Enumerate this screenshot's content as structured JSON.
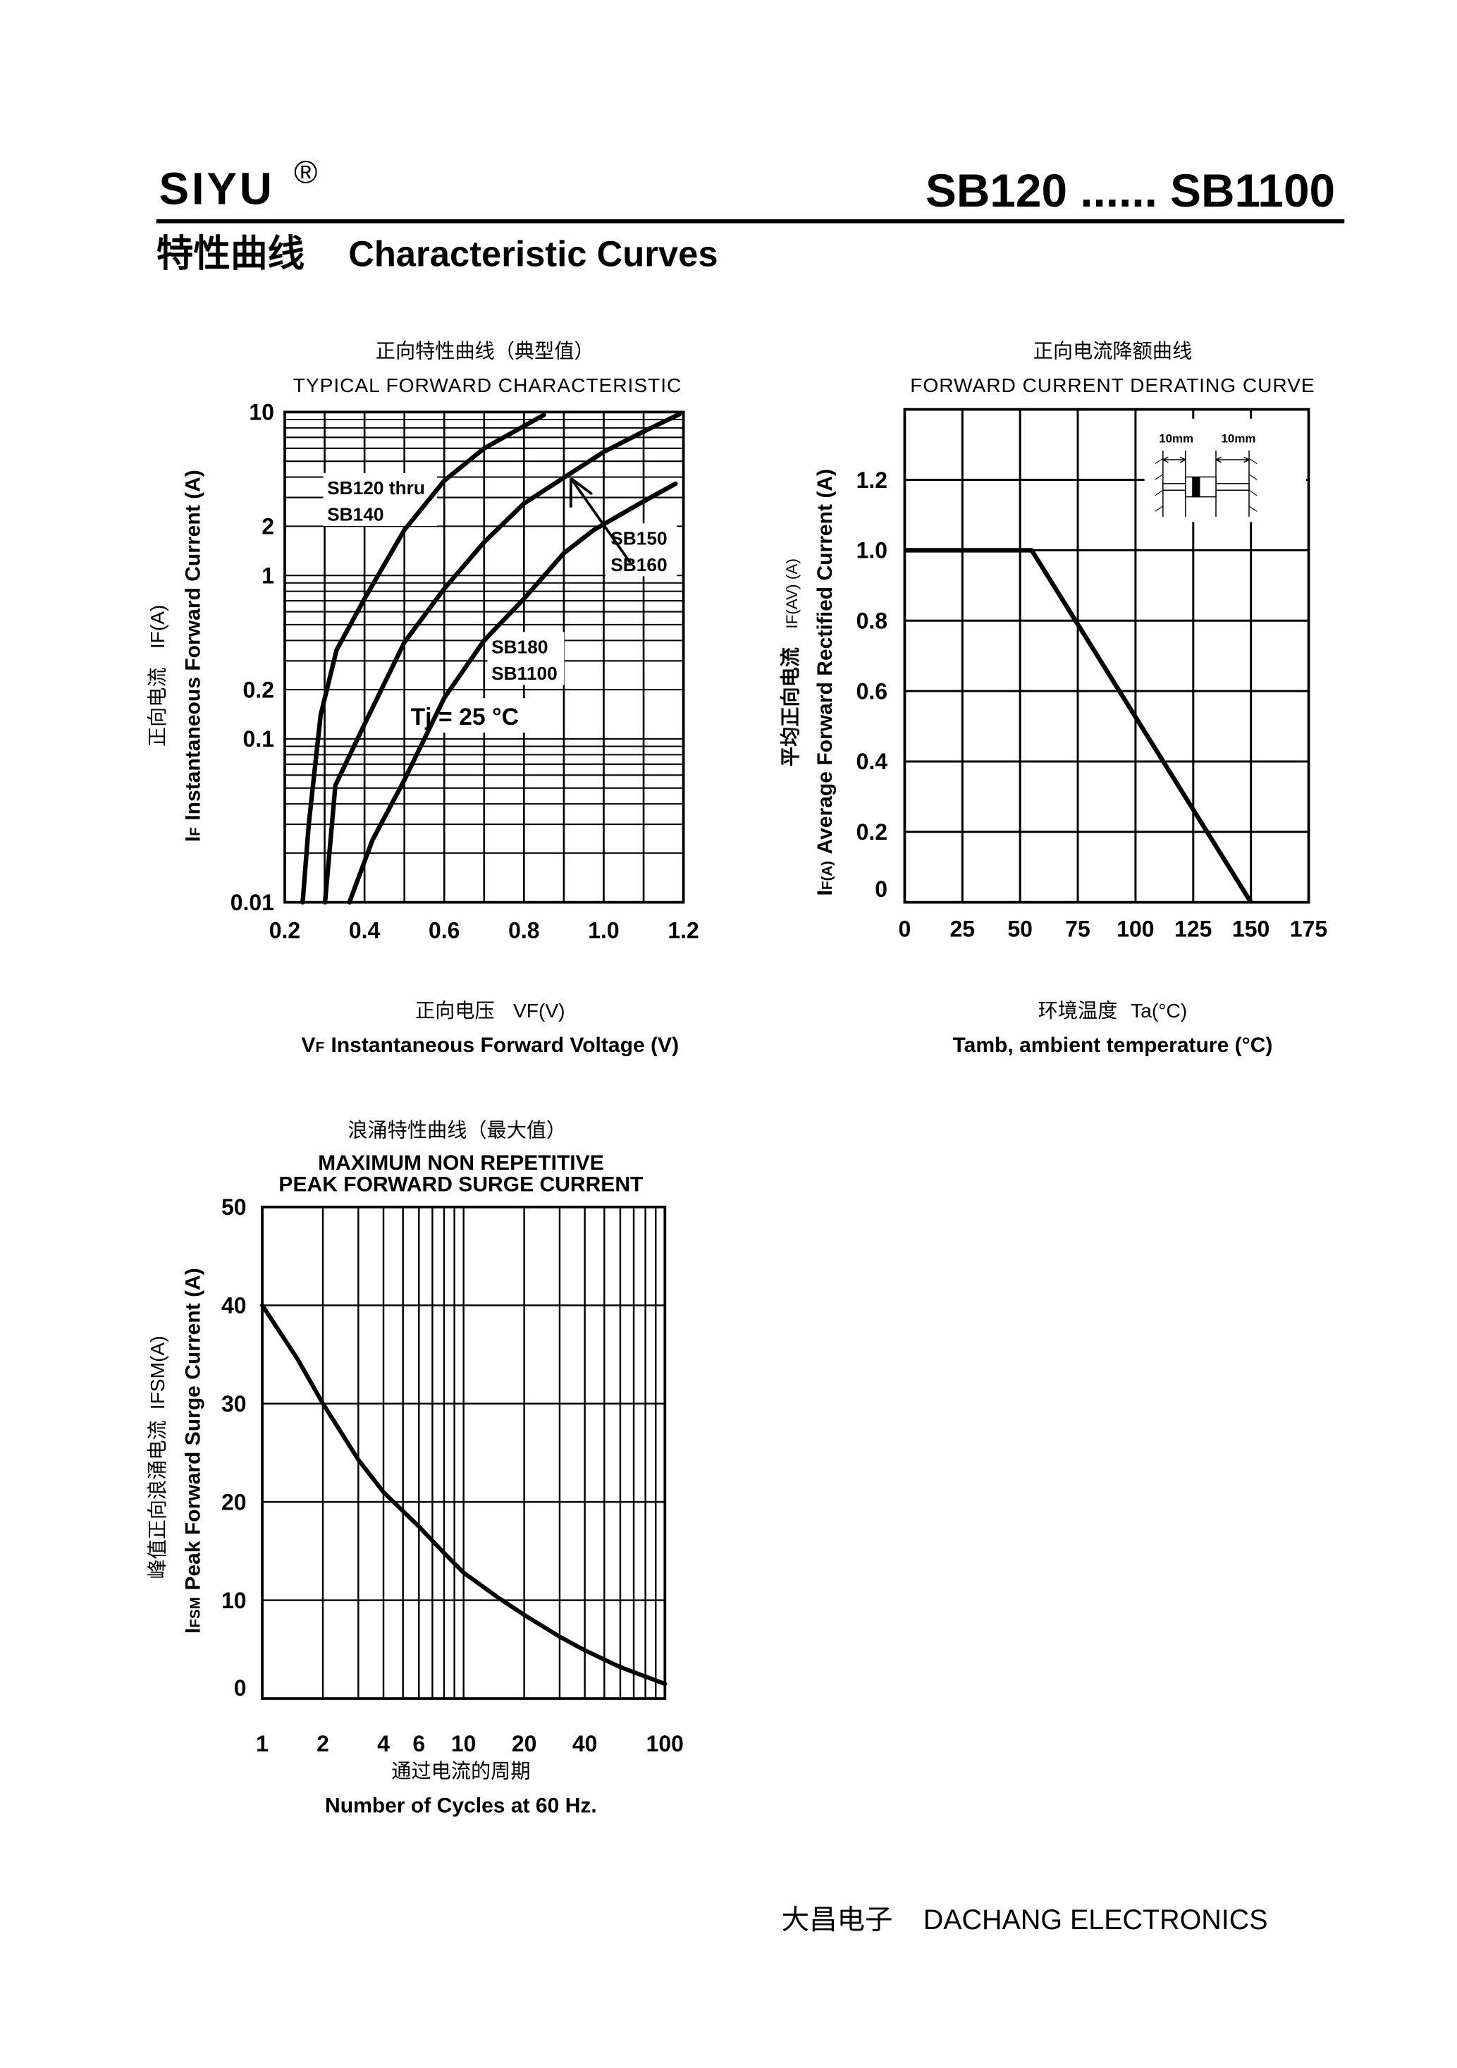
{
  "header": {
    "brand": "SIYU",
    "registered_mark": "®",
    "model_range": "SB120 ...... SB1100",
    "section_title_cn": "特性曲线",
    "section_title_en": "Characteristic Curves"
  },
  "footer": {
    "company_cn": "大昌电子",
    "company_en": "DACHANG ELECTRONICS"
  },
  "chart_data": [
    {
      "type": "line",
      "title_cn": "正向特性曲线（典型值）",
      "title": "TYPICAL FORWARD CHARACTERISTIC",
      "xlabel_cn": "正向电压",
      "xlabel_symbol_cn": "VF(V)",
      "xlabel_sym": "V",
      "xlabel_sub": "F",
      "xlabel": "Instantaneous Forward Voltage (V)",
      "ylabel_cn": "正向电流",
      "ylabel_symbol_cn": "IF(A)",
      "ylabel_sym": "I",
      "ylabel_sub": "F",
      "ylabel": "Instantaneous Forward Current (A)",
      "xlim": [
        0.2,
        1.2
      ],
      "ylim": [
        0.01,
        10
      ],
      "yscale": "log",
      "grid": true,
      "x_ticks": [
        "0.2",
        "0.4",
        "0.6",
        "0.8",
        "1.0",
        "1.2"
      ],
      "y_ticks": [
        {
          "v": 10,
          "label": "10"
        },
        {
          "v": 2,
          "label": "2"
        },
        {
          "v": 1,
          "label": "1"
        },
        {
          "v": 0.2,
          "label": "0.2"
        },
        {
          "v": 0.1,
          "label": "0.1"
        },
        {
          "v": 0.01,
          "label": "0.01"
        }
      ],
      "annotation": "Tj = 25 °C",
      "series": [
        {
          "name_lines": [
            "SB120 thru",
            "SB140"
          ],
          "points": [
            [
              0.245,
              0.01
            ],
            [
              0.26,
              0.03
            ],
            [
              0.29,
              0.14
            ],
            [
              0.33,
              0.35
            ],
            [
              0.4,
              0.72
            ],
            [
              0.5,
              1.9
            ],
            [
              0.6,
              3.8
            ],
            [
              0.7,
              6.0
            ],
            [
              0.85,
              9.6
            ]
          ]
        },
        {
          "name_lines": [
            "SB150",
            "SB160"
          ],
          "points": [
            [
              0.301,
              0.01
            ],
            [
              0.327,
              0.052
            ],
            [
              0.4,
              0.123
            ],
            [
              0.5,
              0.39
            ],
            [
              0.6,
              0.83
            ],
            [
              0.7,
              1.6
            ],
            [
              0.8,
              2.76
            ],
            [
              0.9,
              3.97
            ],
            [
              1.0,
              5.7
            ],
            [
              1.1,
              7.6
            ],
            [
              1.19,
              9.7
            ]
          ]
        },
        {
          "name_lines": [
            "SB180",
            "SB1100"
          ],
          "points": [
            [
              0.362,
              0.01
            ],
            [
              0.42,
              0.024
            ],
            [
              0.5,
              0.056
            ],
            [
              0.6,
              0.178
            ],
            [
              0.7,
              0.4
            ],
            [
              0.8,
              0.72
            ],
            [
              0.9,
              1.37
            ],
            [
              0.975,
              1.9
            ],
            [
              1.1,
              2.84
            ],
            [
              1.18,
              3.64
            ]
          ]
        }
      ]
    },
    {
      "type": "line",
      "title_cn": "正向电流降额曲线",
      "title": "FORWARD CURRENT DERATING CURVE",
      "xlabel_cn": "环境温度",
      "xlabel_symbol_cn": "Ta(°C)",
      "xlabel": "Tamb, ambient temperature (°C)",
      "ylabel_cn": "平均正向电流",
      "ylabel_symbol_cn": "IF(AV) (A)",
      "ylabel_sym": "I",
      "ylabel_sub": "F(A)",
      "ylabel": "Average Forward Rectified Current (A)",
      "xlim": [
        0,
        175
      ],
      "ylim": [
        0,
        1.4
      ],
      "grid": true,
      "x_ticks": [
        "0",
        "25",
        "50",
        "75",
        "100",
        "125",
        "150",
        "175"
      ],
      "y_ticks": [
        "0",
        "0.2",
        "0.4",
        "0.6",
        "0.8",
        "1.0",
        "1.2"
      ],
      "inset_labels": [
        "10mm",
        "10mm"
      ],
      "series": [
        {
          "points": [
            [
              0,
              1.0
            ],
            [
              55,
              1.0
            ],
            [
              150,
              0
            ]
          ]
        }
      ]
    },
    {
      "type": "line",
      "title_cn": "浪涌特性曲线（最大值）",
      "title_lines": [
        "MAXIMUM NON REPETITIVE",
        "PEAK FORWARD SURGE CURRENT"
      ],
      "xlabel_cn": "通过电流的周期",
      "xlabel": "Number  of  Cycles at 60 Hz.",
      "ylabel_cn": "峰值正向浪涌电流",
      "ylabel_symbol_cn": "IFSM(A)",
      "ylabel_sym": "I",
      "ylabel_sub": "FSM",
      "ylabel": "Peak Forward Surge Current (A)",
      "xlim": [
        1,
        100
      ],
      "xscale": "log",
      "ylim": [
        0,
        50
      ],
      "grid": true,
      "x_ticks": [
        {
          "v": 1,
          "label": "1"
        },
        {
          "v": 2,
          "label": "2"
        },
        {
          "v": 4,
          "label": "4"
        },
        {
          "v": 6,
          "label": "6"
        },
        {
          "v": 10,
          "label": "10"
        },
        {
          "v": 20,
          "label": "20"
        },
        {
          "v": 40,
          "label": "40"
        },
        {
          "v": 100,
          "label": "100"
        }
      ],
      "y_ticks": [
        "0",
        "10",
        "20",
        "30",
        "40",
        "50"
      ],
      "series": [
        {
          "points": [
            [
              1,
              40
            ],
            [
              1.5,
              34.5
            ],
            [
              2,
              30
            ],
            [
              3,
              24.3
            ],
            [
              4,
              21
            ],
            [
              6,
              17.5
            ],
            [
              8,
              14.8
            ],
            [
              10,
              12.8
            ],
            [
              15,
              10.2
            ],
            [
              20,
              8.5
            ],
            [
              30,
              6.3
            ],
            [
              40,
              4.9
            ],
            [
              60,
              3.2
            ],
            [
              100,
              1.5
            ]
          ]
        }
      ]
    }
  ]
}
